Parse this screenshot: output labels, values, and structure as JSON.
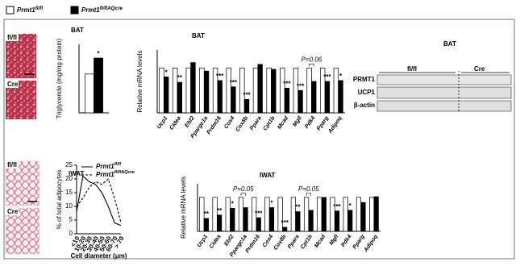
{
  "legend_title": null,
  "panels": {
    "bat": "BAT",
    "iwat": "IWAT"
  },
  "micrographs": {
    "bat": [
      "fl/fl",
      "Cre"
    ],
    "iwat": [
      "fl/fl",
      "Cre"
    ]
  },
  "western": {
    "title": "BAT",
    "groups": [
      "fl/fl",
      "Cre"
    ],
    "rows": [
      "PRMT1",
      "UCP1",
      "β-actin"
    ]
  },
  "chart_data": [
    {
      "type": "bar",
      "ylabel": "Triglyceride (mg/mg protein)",
      "ylim": [
        0,
        0.6
      ],
      "series": [
        {
          "color": "#ffffff",
          "values": [
            0.34
          ]
        },
        {
          "color": "#000000",
          "values": [
            0.48
          ],
          "annotations": [
            "*"
          ]
        }
      ]
    },
    {
      "type": "bar",
      "title": "BAT",
      "ylabel": "Relative mRNA levels",
      "ylim": [
        0,
        1.4
      ],
      "categories": [
        "Ucp1",
        "Cidea",
        "Ebf2",
        "Ppargc1a",
        "Prdm16",
        "Cox4",
        "Cox8b",
        "Ppara",
        "Cpt1b",
        "Mcad",
        "Mgll",
        "Pdk4",
        "Pparg",
        "Adipoq"
      ],
      "series": [
        {
          "name": "Prmt1",
          "sup": "fl/fl",
          "color": "#ffffff",
          "values": [
            1,
            1,
            1,
            1,
            1,
            1,
            1,
            1,
            1,
            1,
            1,
            1,
            1,
            1
          ]
        },
        {
          "name": "Prmt1",
          "sup": "fl/flAQcre",
          "color": "#000000",
          "values": [
            0.8,
            0.68,
            1.12,
            0.93,
            0.72,
            0.58,
            0.3,
            1.08,
            0.97,
            0.55,
            0.5,
            0.7,
            0.7,
            0.72
          ],
          "annotations": [
            "*",
            "**",
            null,
            null,
            "***",
            "***",
            "***",
            null,
            null,
            "***",
            "***",
            "P=0.06",
            "***",
            "*"
          ]
        }
      ]
    },
    {
      "type": "line",
      "ylabel": "% of total adipocytes",
      "xlabel": "Cell diameter (μm)",
      "ylim": [
        0,
        25
      ],
      "yticks": [
        0,
        5,
        10,
        15,
        20,
        25
      ],
      "categories": [
        "<10",
        "10-20",
        "20-30",
        "30-40",
        "40-50",
        "50-60",
        "60-70",
        "> 70"
      ],
      "series": [
        {
          "name": "Prmt1",
          "sup": "fl/fl",
          "color": "#000000",
          "dash": false,
          "values": [
            8,
            21,
            19,
            18,
            15,
            10,
            4,
            3
          ]
        },
        {
          "name": "Prmt1",
          "sup": "fl/flAQcre",
          "color": "#000000",
          "dash": true,
          "values": [
            10,
            13,
            17,
            19,
            18,
            20,
            13,
            4
          ]
        }
      ]
    },
    {
      "type": "bar",
      "title": "IWAT",
      "ylabel": "Relative mRNA levels",
      "ylim": [
        0,
        1.4
      ],
      "categories": [
        "Ucp1",
        "Cidea",
        "Ebf2",
        "Ppargc1a",
        "Prdm16",
        "Cox4",
        "Cox8b",
        "Ppara",
        "Cpt1b",
        "Mcad",
        "Mgll",
        "Pdk4",
        "Pparg",
        "Adipoq"
      ],
      "series": [
        {
          "color": "#ffffff",
          "values": [
            1,
            1,
            1,
            1,
            1,
            1,
            1,
            1,
            1,
            1,
            1,
            1,
            1,
            1
          ]
        },
        {
          "color": "#000000",
          "values": [
            0.38,
            0.48,
            0.68,
            0.7,
            0.4,
            0.7,
            0.12,
            0.58,
            0.62,
            1.0,
            0.6,
            0.62,
            0.85,
            1.02
          ],
          "annotations": [
            "**",
            "**",
            "*",
            "P=0.05",
            "***",
            "*",
            "***",
            "**",
            "P=0.05",
            null,
            "***",
            "*",
            null,
            null
          ]
        }
      ]
    }
  ]
}
